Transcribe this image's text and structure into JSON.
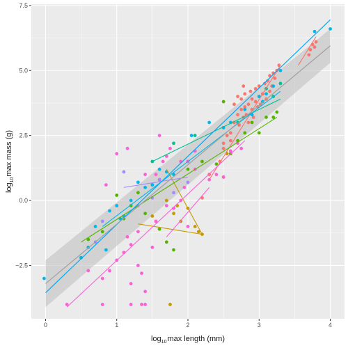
{
  "chart_data": {
    "type": "scatter",
    "xlabel": {
      "prefix": "log",
      "sub": "10",
      "rest": "max length (mm)"
    },
    "ylabel": {
      "prefix": "log",
      "sub": "10",
      "rest": "max mass (g)"
    },
    "xlim": [
      -0.2,
      4.2
    ],
    "ylim": [
      -4.55,
      7.55
    ],
    "x_ticks": [
      0,
      1,
      2,
      3,
      4
    ],
    "x_tick_labels": [
      "0",
      "1",
      "2",
      "3",
      "4"
    ],
    "y_ticks": [
      -2.5,
      0,
      2.5,
      5,
      7.5
    ],
    "y_tick_labels": [
      "−2.5",
      "0.0",
      "2.5",
      "5.0",
      "7.5"
    ],
    "grid": true,
    "legend": "none",
    "panel_color": "#ebebeb",
    "grid_color": "#ffffff",
    "ribbon_color": "#bdbdbd",
    "global_fits": [
      {
        "color": "#00a9ff",
        "x": [
          0.0,
          4.0
        ],
        "y": [
          -3.55,
          6.95
        ]
      },
      {
        "color": "#a0a0a0",
        "x": [
          0.0,
          4.0
        ],
        "y": [
          -3.2,
          5.95
        ],
        "ribbon": [
          [
            -4.1,
            -2.3
          ],
          [
            5.3,
            6.6
          ]
        ]
      }
    ],
    "series": [
      {
        "color": "#f8766d",
        "points": [
          [
            2.2,
            0.1
          ],
          [
            2.3,
            1.0
          ],
          [
            2.45,
            1.5
          ],
          [
            2.5,
            2.0
          ],
          [
            2.55,
            2.5
          ],
          [
            2.6,
            2.6
          ],
          [
            2.65,
            3.0
          ],
          [
            2.7,
            3.3
          ],
          [
            2.72,
            2.9
          ],
          [
            2.75,
            3.5
          ],
          [
            2.75,
            3.9
          ],
          [
            2.78,
            3.2
          ],
          [
            2.8,
            3.6
          ],
          [
            2.8,
            4.1
          ],
          [
            2.82,
            3.3
          ],
          [
            2.85,
            3.7
          ],
          [
            2.85,
            3.0
          ],
          [
            2.88,
            4.2
          ],
          [
            2.9,
            3.5
          ],
          [
            2.9,
            3.9
          ],
          [
            2.92,
            3.2
          ],
          [
            2.95,
            3.8
          ],
          [
            2.95,
            4.3
          ],
          [
            2.98,
            3.6
          ],
          [
            3.0,
            4.0
          ],
          [
            3.0,
            4.4
          ],
          [
            3.02,
            3.7
          ],
          [
            3.05,
            4.1
          ],
          [
            3.08,
            4.5
          ],
          [
            3.1,
            3.9
          ],
          [
            3.1,
            4.3
          ],
          [
            3.12,
            4.6
          ],
          [
            3.15,
            4.2
          ],
          [
            3.15,
            4.8
          ],
          [
            3.18,
            4.4
          ],
          [
            3.2,
            4.9
          ],
          [
            3.22,
            4.7
          ],
          [
            3.25,
            5.0
          ],
          [
            3.28,
            5.2
          ],
          [
            2.65,
            3.7
          ],
          [
            2.7,
            4.0
          ],
          [
            2.78,
            4.4
          ],
          [
            3.7,
            5.6
          ],
          [
            3.72,
            5.8
          ],
          [
            3.75,
            6.0
          ],
          [
            3.78,
            5.9
          ],
          [
            3.8,
            6.1
          ],
          [
            2.6,
            2.3
          ],
          [
            2.5,
            2.2
          ]
        ],
        "fit": [
          [
            2.3,
            0.8
          ],
          [
            3.3,
            5.2
          ]
        ],
        "fit2": [
          [
            3.55,
            5.2
          ],
          [
            3.8,
            6.3
          ]
        ]
      },
      {
        "color": "#c49a00",
        "points": [
          [
            1.6,
            0.8
          ],
          [
            1.7,
            0.0
          ],
          [
            1.8,
            -0.5
          ],
          [
            1.85,
            -0.2
          ],
          [
            1.9,
            -0.8
          ],
          [
            2.0,
            -0.3
          ],
          [
            2.1,
            -1.0
          ],
          [
            2.15,
            -1.2
          ],
          [
            2.2,
            -1.3
          ],
          [
            1.5,
            -0.6
          ],
          [
            1.75,
            -4.0
          ],
          [
            2.5,
            0.9
          ],
          [
            2.55,
            1.8
          ]
        ],
        "fit": [
          [
            1.3,
            -0.9
          ],
          [
            2.2,
            -1.3
          ]
        ],
        "fit2": [
          [
            1.7,
            1.2
          ],
          [
            2.2,
            -1.3
          ]
        ]
      },
      {
        "color": "#53b400",
        "points": [
          [
            0.5,
            -2.2
          ],
          [
            0.6,
            -1.5
          ],
          [
            0.8,
            -1.2
          ],
          [
            1.0,
            0.2
          ],
          [
            1.1,
            -0.7
          ],
          [
            1.2,
            -0.2
          ],
          [
            1.3,
            0.3
          ],
          [
            1.4,
            -0.5
          ],
          [
            1.5,
            0.6
          ],
          [
            1.6,
            -1.1
          ],
          [
            1.7,
            -1.6
          ],
          [
            1.8,
            -1.9
          ],
          [
            2.0,
            1.2
          ],
          [
            2.2,
            1.5
          ],
          [
            2.4,
            1.4
          ],
          [
            2.6,
            1.8
          ],
          [
            2.7,
            2.3
          ],
          [
            2.8,
            2.6
          ],
          [
            2.9,
            3.0
          ],
          [
            3.0,
            2.6
          ],
          [
            3.1,
            3.2
          ],
          [
            3.2,
            3.2
          ],
          [
            3.25,
            3.4
          ],
          [
            2.5,
            3.8
          ]
        ],
        "fit": [
          [
            0.5,
            -1.6
          ],
          [
            3.25,
            3.2
          ]
        ]
      },
      {
        "color": "#00c094",
        "points": [
          [
            1.5,
            1.5
          ],
          [
            1.8,
            2.2
          ],
          [
            2.1,
            2.5
          ],
          [
            2.5,
            2.8
          ],
          [
            2.7,
            3.0
          ],
          [
            3.05,
            3.8
          ],
          [
            3.1,
            4.3
          ],
          [
            3.2,
            4.0
          ],
          [
            3.3,
            4.5
          ]
        ],
        "fit": [
          [
            1.5,
            1.5
          ],
          [
            3.3,
            3.9
          ]
        ]
      },
      {
        "color": "#00b6eb",
        "points": [
          [
            -0.02,
            -3.0
          ],
          [
            0.5,
            -2.2
          ],
          [
            0.6,
            -1.8
          ],
          [
            0.7,
            -1.0
          ],
          [
            0.85,
            -1.9
          ],
          [
            0.9,
            -0.4
          ],
          [
            1.0,
            -0.2
          ],
          [
            1.05,
            -0.7
          ],
          [
            1.1,
            -0.6
          ],
          [
            1.2,
            0.0
          ],
          [
            1.3,
            0.7
          ],
          [
            1.4,
            0.5
          ],
          [
            1.5,
            0.6
          ],
          [
            1.6,
            1.2
          ],
          [
            1.7,
            1.1
          ],
          [
            1.8,
            1.0
          ],
          [
            2.0,
            1.5
          ],
          [
            2.05,
            2.5
          ],
          [
            2.3,
            3.0
          ],
          [
            2.5,
            2.8
          ],
          [
            2.6,
            3.0
          ],
          [
            2.8,
            3.5
          ],
          [
            2.9,
            3.3
          ],
          [
            3.0,
            4.0
          ],
          [
            3.05,
            3.8
          ],
          [
            3.1,
            4.1
          ],
          [
            3.2,
            4.4
          ],
          [
            3.3,
            5.0
          ],
          [
            3.78,
            6.5
          ],
          [
            4.0,
            6.6
          ]
        ],
        "fit": [
          [
            0.8,
            -1.0
          ],
          [
            3.3,
            4.2
          ]
        ]
      },
      {
        "color": "#a58aff",
        "points": [
          [
            0.7,
            -1.6
          ],
          [
            0.8,
            -0.8
          ],
          [
            1.1,
            1.1
          ],
          [
            1.3,
            -0.2
          ],
          [
            1.5,
            0.1
          ],
          [
            1.6,
            0.8
          ],
          [
            1.8,
            0.3
          ],
          [
            2.0,
            0.7
          ]
        ],
        "fit": [
          [
            1.1,
            0.5
          ],
          [
            2.0,
            0.9
          ]
        ]
      },
      {
        "color": "#fb61d7",
        "points": [
          [
            0.3,
            -4.0
          ],
          [
            0.8,
            -4.0
          ],
          [
            1.2,
            -4.0
          ],
          [
            1.35,
            -4.0
          ],
          [
            1.4,
            -4.0
          ],
          [
            0.6,
            -2.7
          ],
          [
            0.8,
            -3.0
          ],
          [
            0.85,
            0.6
          ],
          [
            1.0,
            -2.3
          ],
          [
            1.1,
            -2.0
          ],
          [
            1.15,
            -1.4
          ],
          [
            1.15,
            2.0
          ],
          [
            1.2,
            -3.2
          ],
          [
            1.3,
            -1.2
          ],
          [
            1.3,
            -2.5
          ],
          [
            1.4,
            -3.5
          ],
          [
            1.4,
            1.0
          ],
          [
            1.5,
            -1.8
          ],
          [
            1.55,
            -0.8
          ],
          [
            1.6,
            2.5
          ],
          [
            1.65,
            1.5
          ],
          [
            1.7,
            -0.2
          ],
          [
            1.7,
            1.7
          ],
          [
            1.8,
            -0.3
          ],
          [
            1.9,
            0.0
          ],
          [
            1.95,
            0.5
          ],
          [
            2.0,
            1.5
          ],
          [
            2.1,
            1.9
          ],
          [
            2.1,
            1.2
          ],
          [
            2.3,
            0.8
          ],
          [
            2.4,
            1.0
          ],
          [
            2.5,
            0.9
          ],
          [
            2.6,
            1.9
          ],
          [
            2.7,
            2.2
          ],
          [
            2.75,
            2.0
          ],
          [
            1.35,
            -2.8
          ],
          [
            1.0,
            1.8
          ],
          [
            1.55,
            1.0
          ],
          [
            1.75,
            2.0
          ],
          [
            1.9,
            1.5
          ],
          [
            2.0,
            -1.0
          ],
          [
            1.2,
            -1.7
          ],
          [
            0.9,
            -2.7
          ]
        ],
        "fit": [
          [
            0.3,
            -4.1
          ],
          [
            2.8,
            2.3
          ]
        ],
        "fit2": [
          [
            1.7,
            -1.4
          ],
          [
            2.3,
            0.5
          ]
        ]
      }
    ]
  }
}
